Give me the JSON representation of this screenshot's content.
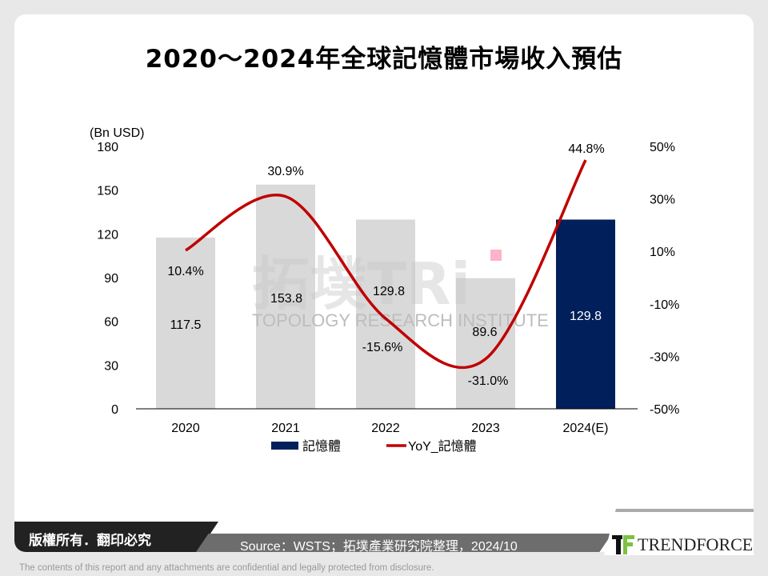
{
  "title": "2020～2024年全球記憶體市場收入預估",
  "chart_data": {
    "type": "bar+line",
    "categories": [
      "2020",
      "2021",
      "2022",
      "2023",
      "2024(E)"
    ],
    "series": [
      {
        "name": "記憶體",
        "type": "bar",
        "axis": "left",
        "values": [
          117.5,
          153.8,
          129.8,
          89.6,
          129.8
        ],
        "labels": [
          "117.5",
          "153.8",
          "129.8",
          "89.6",
          "129.8"
        ],
        "colors": [
          "#d9d9d9",
          "#d9d9d9",
          "#d9d9d9",
          "#d9d9d9",
          "#001f5b"
        ]
      },
      {
        "name": "YoY_記憶體",
        "type": "line",
        "axis": "right",
        "values": [
          10.4,
          30.9,
          -15.6,
          -31.0,
          44.8
        ],
        "labels": [
          "10.4%",
          "30.9%",
          "-15.6%",
          "-31.0%",
          "44.8%"
        ],
        "color": "#c00000"
      }
    ],
    "ylabel_left": "(Bn USD)",
    "ylim_left": [
      0,
      180
    ],
    "yticks_left": [
      "0",
      "30",
      "60",
      "90",
      "120",
      "150",
      "180"
    ],
    "ylim_right": [
      -50,
      50
    ],
    "yticks_right": [
      "-50%",
      "-30%",
      "-10%",
      "10%",
      "30%",
      "50%"
    ],
    "grid": false,
    "legend": "bottom",
    "legend_color_bar": "#001f5b"
  },
  "watermark": {
    "main": "拓墣TRi",
    "sub": "TOPOLOGY RESEARCH INSTITUTE"
  },
  "footer": {
    "copyright": "版權所有．翻印必究",
    "source": "Source：WSTS；拓墣產業研究院整理，2024/10",
    "logo": "TRENDFORCE",
    "disclaimer": "The contents of this report and any attachments are confidential and legally protected from disclosure."
  }
}
